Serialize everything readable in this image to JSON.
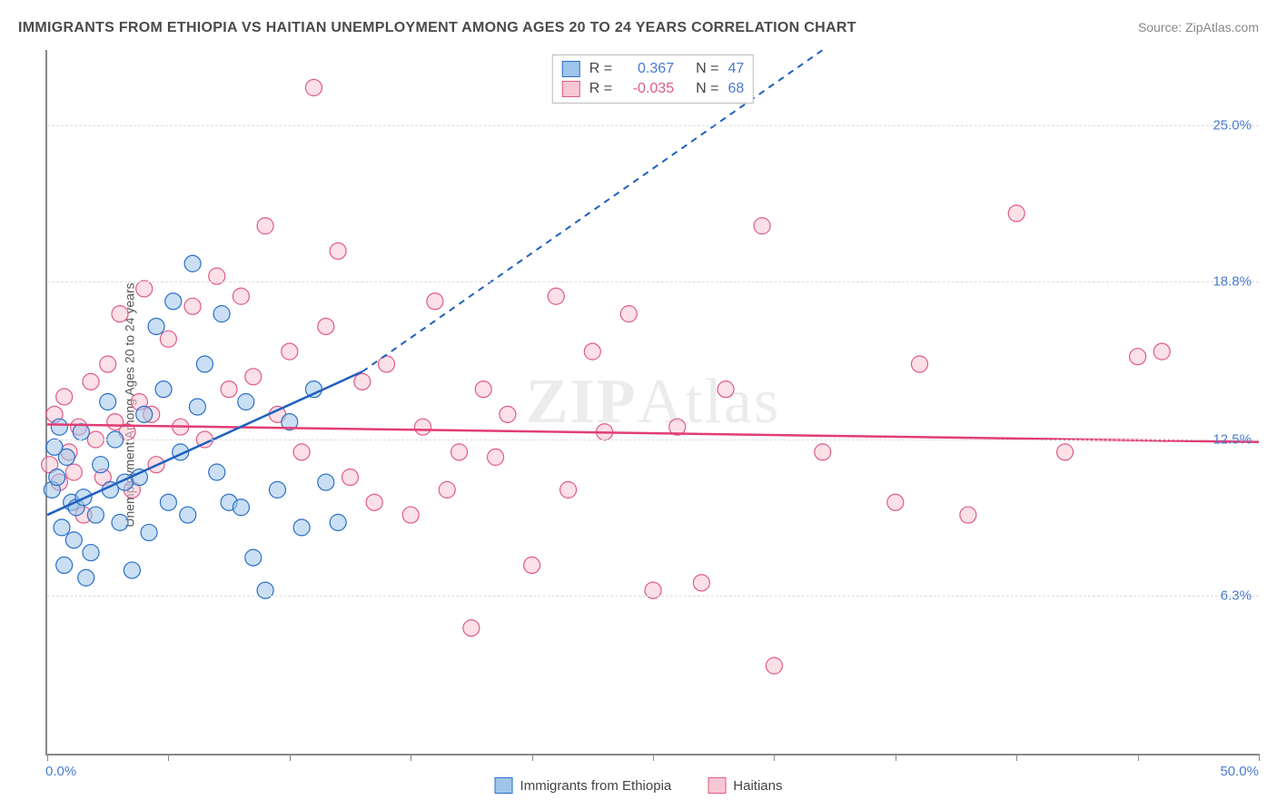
{
  "title": "IMMIGRANTS FROM ETHIOPIA VS HAITIAN UNEMPLOYMENT AMONG AGES 20 TO 24 YEARS CORRELATION CHART",
  "source": "Source: ZipAtlas.com",
  "y_axis_label": "Unemployment Among Ages 20 to 24 years",
  "watermark": "ZIPAtlas",
  "colors": {
    "blue_fill": "#9ec5ea",
    "blue_stroke": "#2a6fc9",
    "blue_line": "#1f5fc0",
    "pink_fill": "#f7c7d4",
    "pink_stroke": "#e05a87",
    "pink_line": "#e23d74",
    "axis": "#888888",
    "grid": "#dddddd",
    "tick_text": "#4a7bd0",
    "text": "#4a4a4a",
    "source_text": "#888888",
    "n_text": "#4a7bd0",
    "r_blue": "#4a7bd0",
    "r_pink": "#e05a87"
  },
  "chart": {
    "type": "scatter",
    "x_domain": [
      0,
      50
    ],
    "y_domain": [
      0,
      28
    ],
    "y_ticks": [
      {
        "v": 6.3,
        "label": "6.3%"
      },
      {
        "v": 12.5,
        "label": "12.5%"
      },
      {
        "v": 18.8,
        "label": "18.8%"
      },
      {
        "v": 25.0,
        "label": "25.0%"
      }
    ],
    "x_ticks": [
      0,
      5,
      10,
      15,
      20,
      25,
      30,
      35,
      40,
      45,
      50
    ],
    "x_min_label": "0.0%",
    "x_max_label": "50.0%",
    "point_radius": 9,
    "point_opacity": 0.55,
    "line_width_solid": 2.5,
    "line_width_dash": 2,
    "dash_pattern": "7,6"
  },
  "legend_top": [
    {
      "color_key": "blue",
      "r_label": "R = ",
      "r_value": "0.367",
      "n_label": "N = ",
      "n_value": "47"
    },
    {
      "color_key": "pink",
      "r_label": "R = ",
      "r_value": "-0.035",
      "n_label": "N = ",
      "n_value": "68"
    }
  ],
  "legend_bottom": [
    {
      "color_key": "blue",
      "label": "Immigrants from Ethiopia"
    },
    {
      "color_key": "pink",
      "label": "Haitians"
    }
  ],
  "series": {
    "blue": {
      "trend": {
        "x1": 0,
        "y1": 9.5,
        "x2_solid": 13,
        "y2_solid": 15.2,
        "x2_dash": 32,
        "y2_dash": 28
      },
      "points": [
        [
          0.2,
          10.5
        ],
        [
          0.3,
          12.2
        ],
        [
          0.4,
          11.0
        ],
        [
          0.5,
          13.0
        ],
        [
          0.6,
          9.0
        ],
        [
          0.7,
          7.5
        ],
        [
          0.8,
          11.8
        ],
        [
          1.0,
          10.0
        ],
        [
          1.1,
          8.5
        ],
        [
          1.2,
          9.8
        ],
        [
          1.4,
          12.8
        ],
        [
          1.5,
          10.2
        ],
        [
          1.6,
          7.0
        ],
        [
          1.8,
          8.0
        ],
        [
          2.0,
          9.5
        ],
        [
          2.2,
          11.5
        ],
        [
          2.5,
          14.0
        ],
        [
          2.6,
          10.5
        ],
        [
          2.8,
          12.5
        ],
        [
          3.0,
          9.2
        ],
        [
          3.2,
          10.8
        ],
        [
          3.5,
          7.3
        ],
        [
          3.8,
          11.0
        ],
        [
          4.0,
          13.5
        ],
        [
          4.2,
          8.8
        ],
        [
          4.5,
          17.0
        ],
        [
          4.8,
          14.5
        ],
        [
          5.0,
          10.0
        ],
        [
          5.2,
          18.0
        ],
        [
          5.5,
          12.0
        ],
        [
          5.8,
          9.5
        ],
        [
          6.0,
          19.5
        ],
        [
          6.2,
          13.8
        ],
        [
          6.5,
          15.5
        ],
        [
          7.0,
          11.2
        ],
        [
          7.2,
          17.5
        ],
        [
          7.5,
          10.0
        ],
        [
          8.0,
          9.8
        ],
        [
          8.2,
          14.0
        ],
        [
          8.5,
          7.8
        ],
        [
          9.0,
          6.5
        ],
        [
          9.5,
          10.5
        ],
        [
          10.0,
          13.2
        ],
        [
          10.5,
          9.0
        ],
        [
          11.0,
          14.5
        ],
        [
          11.5,
          10.8
        ],
        [
          12.0,
          9.2
        ]
      ]
    },
    "pink": {
      "trend": {
        "x1": 0,
        "y1": 13.1,
        "x2": 50,
        "y2": 12.4
      },
      "points": [
        [
          0.1,
          11.5
        ],
        [
          0.3,
          13.5
        ],
        [
          0.5,
          10.8
        ],
        [
          0.7,
          14.2
        ],
        [
          0.9,
          12.0
        ],
        [
          1.1,
          11.2
        ],
        [
          1.3,
          13.0
        ],
        [
          1.5,
          9.5
        ],
        [
          1.8,
          14.8
        ],
        [
          2.0,
          12.5
        ],
        [
          2.3,
          11.0
        ],
        [
          2.5,
          15.5
        ],
        [
          2.8,
          13.2
        ],
        [
          3.0,
          17.5
        ],
        [
          3.3,
          12.8
        ],
        [
          3.5,
          10.5
        ],
        [
          3.8,
          14.0
        ],
        [
          4.0,
          18.5
        ],
        [
          4.3,
          13.5
        ],
        [
          4.5,
          11.5
        ],
        [
          5.0,
          16.5
        ],
        [
          5.5,
          13.0
        ],
        [
          6.0,
          17.8
        ],
        [
          6.5,
          12.5
        ],
        [
          7.0,
          19.0
        ],
        [
          7.5,
          14.5
        ],
        [
          8.0,
          18.2
        ],
        [
          8.5,
          15.0
        ],
        [
          9.0,
          21.0
        ],
        [
          9.5,
          13.5
        ],
        [
          10.0,
          16.0
        ],
        [
          10.5,
          12.0
        ],
        [
          11.0,
          26.5
        ],
        [
          11.5,
          17.0
        ],
        [
          12.0,
          20.0
        ],
        [
          12.5,
          11.0
        ],
        [
          13.0,
          14.8
        ],
        [
          13.5,
          10.0
        ],
        [
          14.0,
          15.5
        ],
        [
          15.0,
          9.5
        ],
        [
          15.5,
          13.0
        ],
        [
          16.0,
          18.0
        ],
        [
          16.5,
          10.5
        ],
        [
          17.0,
          12.0
        ],
        [
          17.5,
          5.0
        ],
        [
          18.0,
          14.5
        ],
        [
          18.5,
          11.8
        ],
        [
          19.0,
          13.5
        ],
        [
          20.0,
          7.5
        ],
        [
          21.0,
          18.2
        ],
        [
          21.5,
          10.5
        ],
        [
          22.5,
          16.0
        ],
        [
          23.0,
          12.8
        ],
        [
          24.0,
          17.5
        ],
        [
          25.0,
          6.5
        ],
        [
          26.0,
          13.0
        ],
        [
          27.0,
          6.8
        ],
        [
          28.0,
          14.5
        ],
        [
          29.5,
          21.0
        ],
        [
          30.0,
          3.5
        ],
        [
          32.0,
          12.0
        ],
        [
          35.0,
          10.0
        ],
        [
          36.0,
          15.5
        ],
        [
          38.0,
          9.5
        ],
        [
          40.0,
          21.5
        ],
        [
          42.0,
          12.0
        ],
        [
          45.0,
          15.8
        ],
        [
          46.0,
          16.0
        ]
      ]
    }
  }
}
